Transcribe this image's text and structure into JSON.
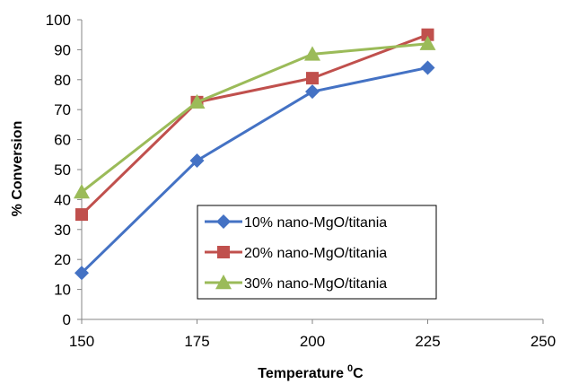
{
  "chart_data": {
    "type": "line",
    "title": "",
    "xlabel": "Temperature",
    "xlabel_superscript": "0",
    "xlabel_suffix": "C",
    "ylabel": "% Conversion",
    "x": [
      150,
      175,
      200,
      225
    ],
    "xlim": [
      150,
      250
    ],
    "ylim": [
      0,
      100
    ],
    "xticks": [
      150,
      175,
      200,
      225,
      250
    ],
    "yticks": [
      0,
      10,
      20,
      30,
      40,
      50,
      60,
      70,
      80,
      90,
      100
    ],
    "grid": false,
    "legend_position": "bottom-right",
    "series": [
      {
        "name": "10% nano-MgO/titania",
        "values": [
          15.5,
          53,
          76,
          84
        ],
        "color": "#4472C4",
        "marker": "diamond"
      },
      {
        "name": "20% nano-MgO/titania",
        "values": [
          35,
          72.5,
          80.5,
          95
        ],
        "color": "#C0504D",
        "marker": "square"
      },
      {
        "name": "30% nano-MgO/titania",
        "values": [
          42.5,
          72.5,
          88.5,
          92
        ],
        "color": "#9BBB59",
        "marker": "triangle"
      }
    ]
  }
}
